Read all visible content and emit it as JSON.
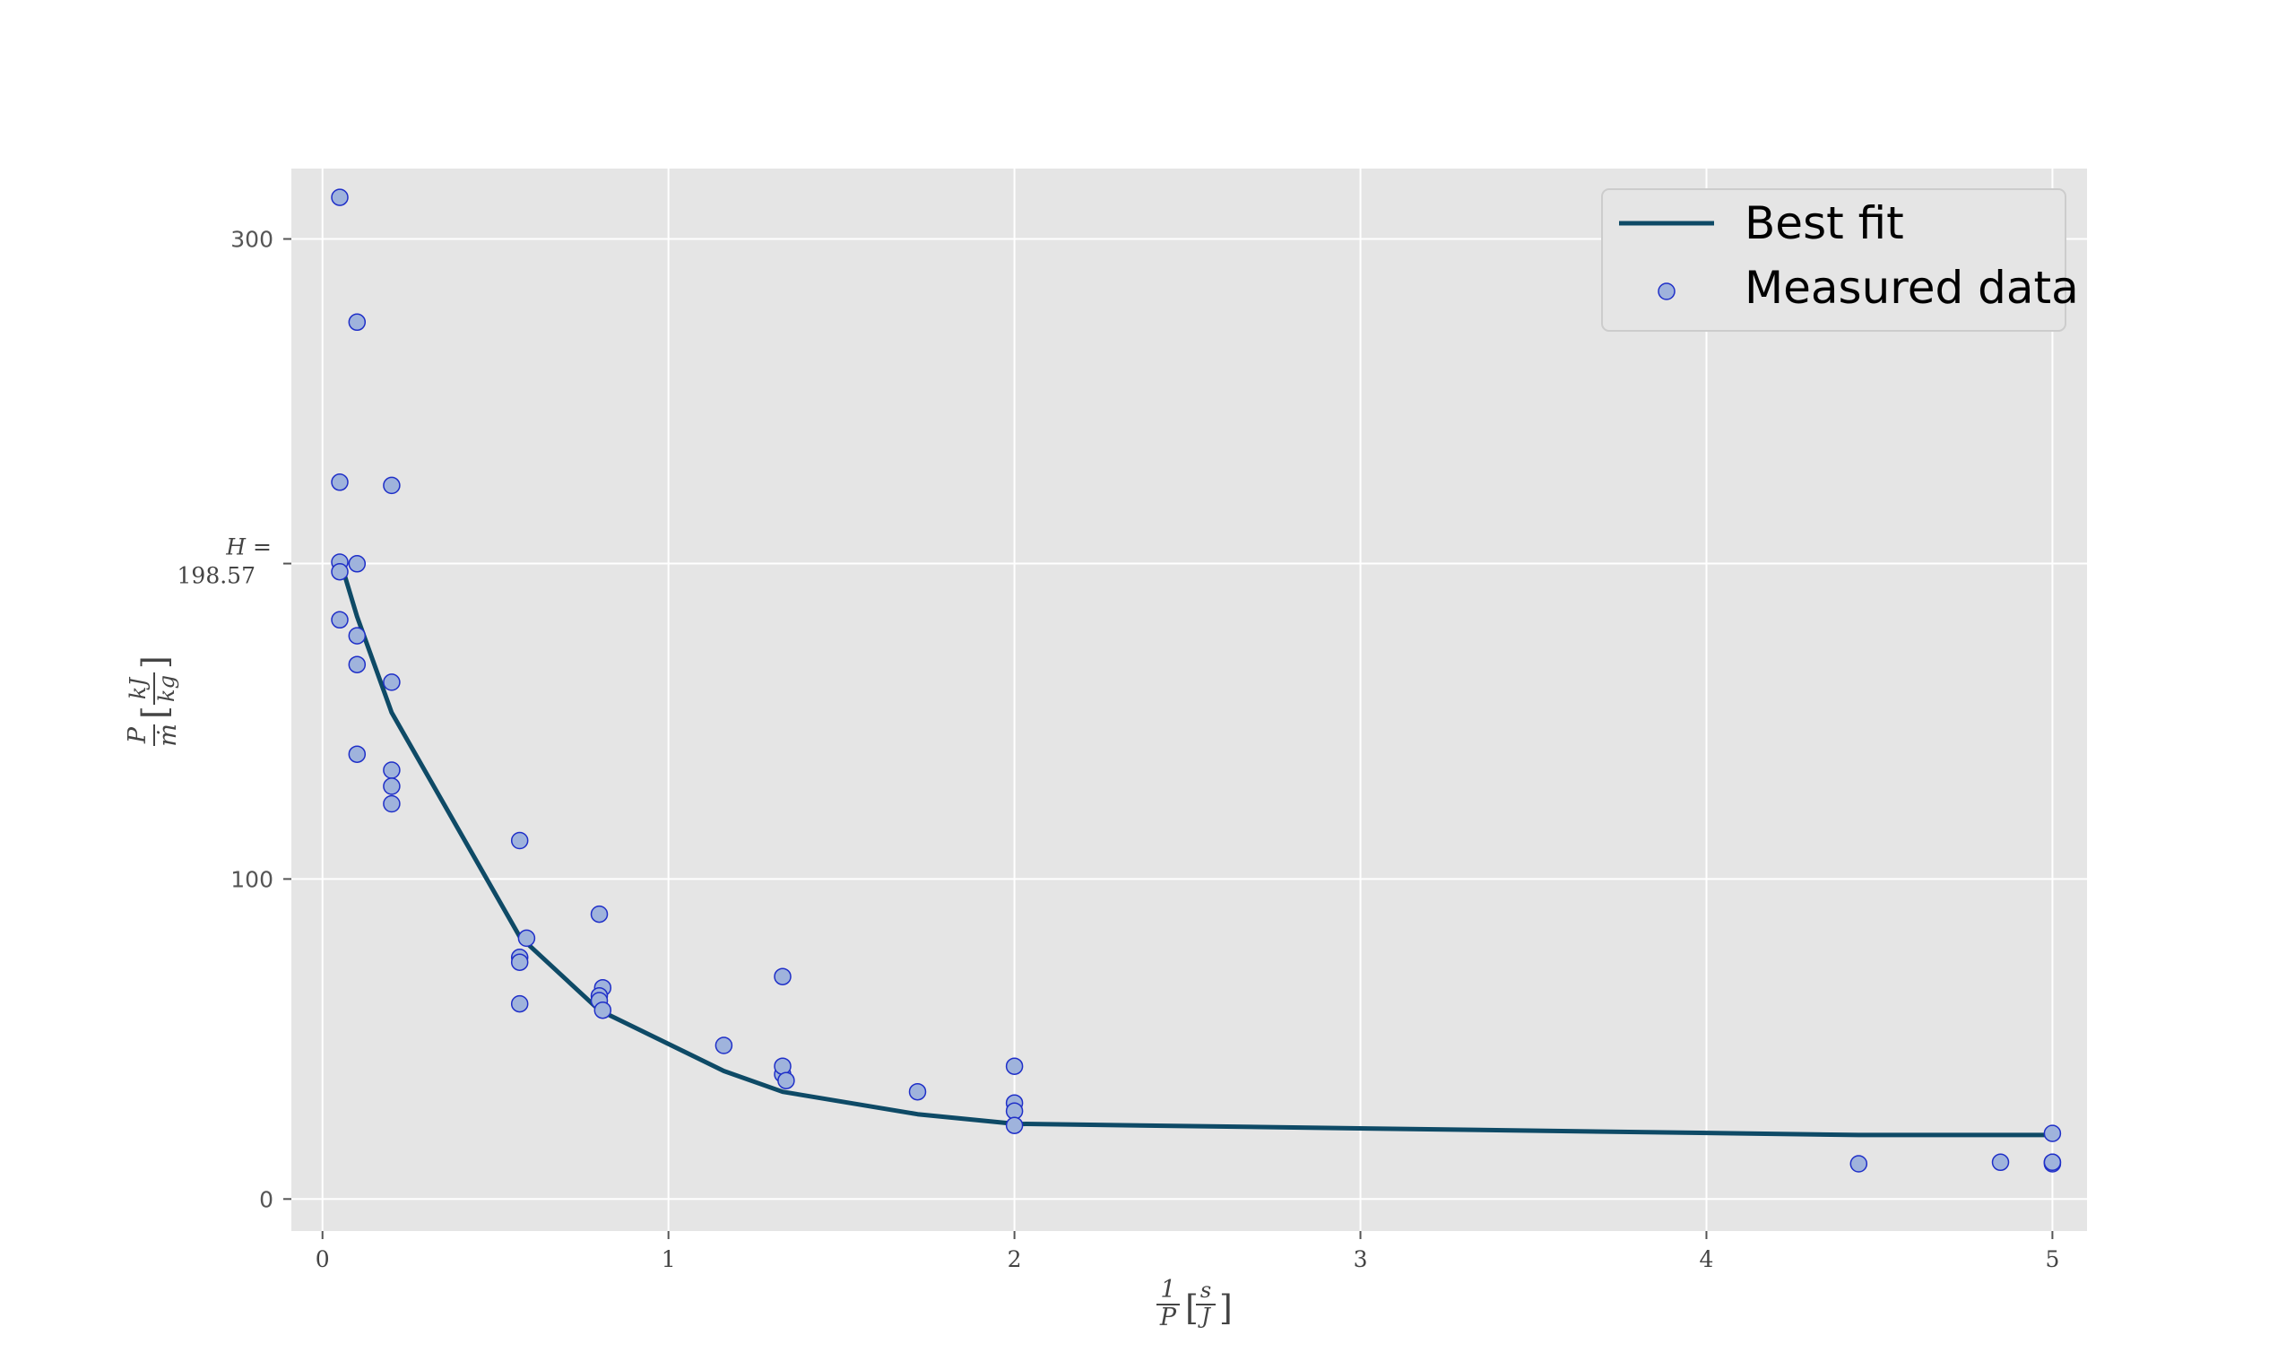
{
  "chart_data": {
    "type": "scatter",
    "xlabel": "1/P [s/J]",
    "ylabel": "P/ṁ [kJ/kg]",
    "xlim": [
      -0.09,
      5.1
    ],
    "ylim": [
      -10,
      322
    ],
    "x_ticks": [
      {
        "value": 0,
        "label": "0"
      },
      {
        "value": 1,
        "label": "1"
      },
      {
        "value": 2,
        "label": "2"
      },
      {
        "value": 3,
        "label": "3"
      },
      {
        "value": 4,
        "label": "4"
      },
      {
        "value": 5,
        "label": "5"
      }
    ],
    "y_ticks": [
      {
        "value": 0,
        "label": "0"
      },
      {
        "value": 100,
        "label": "100"
      },
      {
        "value": 300,
        "label": "300"
      }
    ],
    "annotation": {
      "line1": "H =",
      "line2": "198.57",
      "y": 198.57
    },
    "grid": true,
    "legend_position": "top-right",
    "colors": {
      "background": "#e5e5e5",
      "grid": "#ffffff",
      "fit_line": "#0e4a66",
      "marker_fill": "#9fb3dc",
      "marker_edge": "#1f2fc8"
    },
    "series": [
      {
        "name": "Best fit",
        "kind": "line",
        "x": [
          0.05,
          0.1,
          0.2,
          0.57,
          0.8,
          1.16,
          1.33,
          1.72,
          2.0,
          4.44,
          4.85,
          5.0
        ],
        "y": [
          200,
          182,
          152,
          82,
          59,
          40,
          33.5,
          26.5,
          23.5,
          20,
          20,
          20
        ]
      },
      {
        "name": "Measured data",
        "kind": "scatter",
        "x": [
          0.05,
          0.1,
          0.05,
          0.2,
          0.05,
          0.05,
          0.1,
          0.05,
          0.1,
          0.1,
          0.2,
          0.1,
          0.2,
          0.2,
          0.2,
          0.57,
          0.59,
          0.57,
          0.57,
          0.57,
          0.8,
          0.81,
          0.8,
          0.8,
          0.81,
          1.16,
          1.33,
          1.33,
          1.33,
          1.34,
          1.72,
          2.0,
          2.0,
          2.0,
          2.0,
          4.44,
          4.85,
          5.0,
          5.0,
          5.0,
          5.0
        ],
        "y": [
          313,
          274,
          224,
          223,
          199,
          196,
          198.5,
          181,
          176,
          167,
          161.5,
          139,
          134,
          129,
          123.5,
          112,
          81.5,
          75.5,
          74,
          61,
          89,
          66,
          63.5,
          62,
          59,
          48,
          69.5,
          39,
          41.5,
          37,
          33.5,
          41.5,
          30,
          27.5,
          23,
          11,
          11.5,
          20.5,
          11.5,
          11,
          11.5
        ]
      }
    ]
  }
}
